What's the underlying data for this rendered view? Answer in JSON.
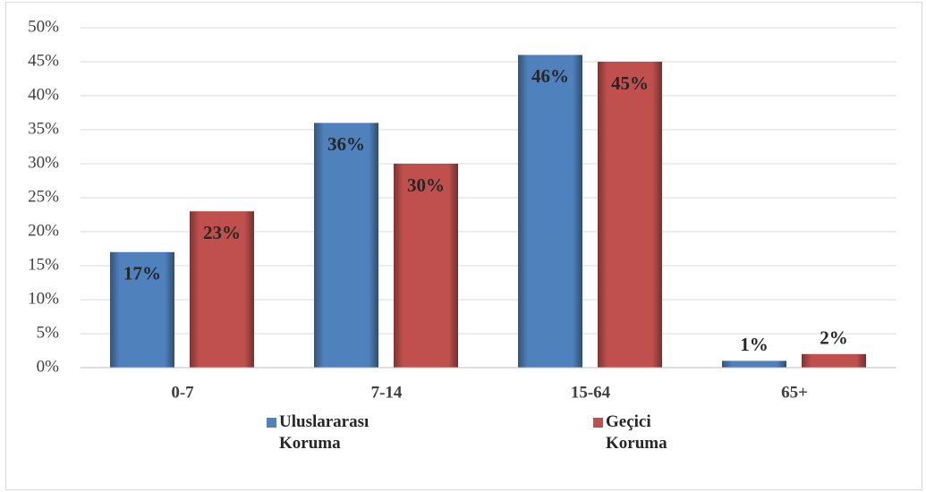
{
  "chart_data": {
    "type": "bar",
    "categories": [
      "0-7",
      "7-14",
      "15-64",
      "65+"
    ],
    "series": [
      {
        "name": "Uluslararası Koruma",
        "color": "#4f81bd",
        "values": [
          17,
          36,
          46,
          1
        ],
        "value_labels": [
          "17%",
          "36%",
          "46%",
          "1%"
        ]
      },
      {
        "name": "Geçici Koruma",
        "color": "#c0504d",
        "values": [
          23,
          30,
          45,
          2
        ],
        "value_labels": [
          "23%",
          "30%",
          "45%",
          "2%"
        ]
      }
    ],
    "ylim": [
      0,
      50
    ],
    "yticks": [
      {
        "value": 0,
        "label": "0%"
      },
      {
        "value": 5,
        "label": "5%"
      },
      {
        "value": 10,
        "label": "10%"
      },
      {
        "value": 15,
        "label": "15%"
      },
      {
        "value": 20,
        "label": "20%"
      },
      {
        "value": 25,
        "label": "25%"
      },
      {
        "value": 30,
        "label": "30%"
      },
      {
        "value": 35,
        "label": "35%"
      },
      {
        "value": 40,
        "label": "40%"
      },
      {
        "value": 45,
        "label": "45%"
      },
      {
        "value": 50,
        "label": "50%"
      }
    ],
    "grid": true,
    "legend": "bottom"
  }
}
